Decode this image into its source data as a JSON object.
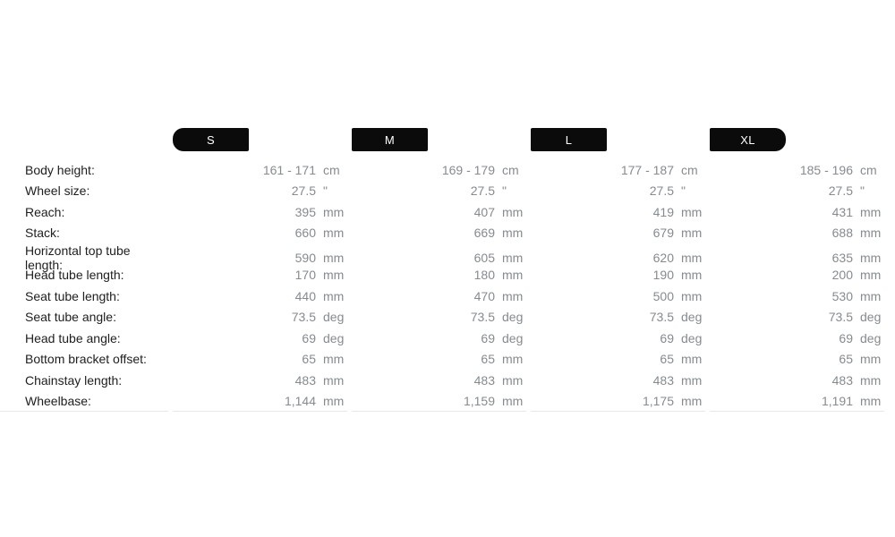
{
  "table": {
    "name": "bike-geometry-size-table",
    "sizes": [
      {
        "label": "S"
      },
      {
        "label": "M"
      },
      {
        "label": "L"
      },
      {
        "label": "XL"
      }
    ],
    "rows": [
      {
        "label": "Body height:",
        "unit": "cm",
        "values": [
          "161 - 171",
          "169 - 179",
          "177 - 187",
          "185 - 196"
        ]
      },
      {
        "label": "Wheel size:",
        "unit": "\"",
        "values": [
          "27.5",
          "27.5",
          "27.5",
          "27.5"
        ]
      },
      {
        "label": "Reach:",
        "unit": "mm",
        "values": [
          "395",
          "407",
          "419",
          "431"
        ]
      },
      {
        "label": "Stack:",
        "unit": "mm",
        "values": [
          "660",
          "669",
          "679",
          "688"
        ]
      },
      {
        "label": "Horizontal top tube length:",
        "unit": "mm",
        "values": [
          "590",
          "605",
          "620",
          "635"
        ]
      },
      {
        "label": "Head tube length:",
        "unit": "mm",
        "values": [
          "170",
          "180",
          "190",
          "200"
        ]
      },
      {
        "label": "Seat tube length:",
        "unit": "mm",
        "values": [
          "440",
          "470",
          "500",
          "530"
        ]
      },
      {
        "label": "Seat tube angle:",
        "unit": "deg",
        "values": [
          "73.5",
          "73.5",
          "73.5",
          "73.5"
        ]
      },
      {
        "label": "Head tube angle:",
        "unit": "deg",
        "values": [
          "69",
          "69",
          "69",
          "69"
        ]
      },
      {
        "label": "Bottom bracket offset:",
        "unit": "mm",
        "values": [
          "65",
          "65",
          "65",
          "65"
        ]
      },
      {
        "label": "Chainstay length:",
        "unit": "mm",
        "values": [
          "483",
          "483",
          "483",
          "483"
        ]
      },
      {
        "label": "Wheelbase:",
        "unit": "mm",
        "values": [
          "1,144",
          "1,159",
          "1,175",
          "1,191"
        ]
      }
    ],
    "colors": {
      "badge_background": "#0b0b0b",
      "badge_text": "#ffffff",
      "label_text": "#1e1e1e",
      "value_text": "#868b90",
      "divider": "#e7e7e7"
    }
  }
}
